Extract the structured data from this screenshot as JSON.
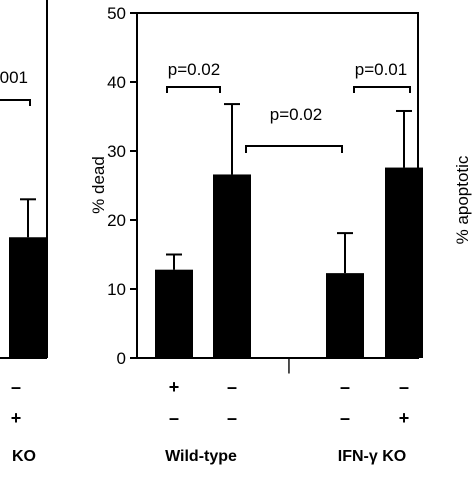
{
  "chart_data": [
    {
      "type": "bar",
      "ylabel": "% dead",
      "ylim": [
        0,
        50
      ],
      "yticks": [
        "0",
        "10",
        "20",
        "30",
        "40",
        "50"
      ],
      "bars": [
        {
          "value": 12.8,
          "error": 2.2
        },
        {
          "value": 26.6,
          "error": 10.2
        },
        {
          "value": 12.3,
          "error": 5.8
        },
        {
          "value": 27.6,
          "error": 8.2
        }
      ],
      "row1_signs": [
        "+",
        "–",
        "–",
        "–"
      ],
      "row2_signs": [
        "–",
        "–",
        "–",
        "+"
      ],
      "group_labels": [
        "Wild-type",
        "IFN-γ KO"
      ],
      "annotations": [
        "p=0.02",
        "p=0.01",
        "p=0.02"
      ],
      "divider_tick": "|"
    },
    {
      "type": "bar",
      "partial": "left-cropped",
      "annotation": ".001",
      "bar": {
        "value": 17.5,
        "error": 5.5
      },
      "row1_sign": "–",
      "row2_sign": "+",
      "group_label": "KO"
    },
    {
      "type": "bar",
      "partial": "right-cropped",
      "ylabel": "% apoptotic"
    }
  ]
}
